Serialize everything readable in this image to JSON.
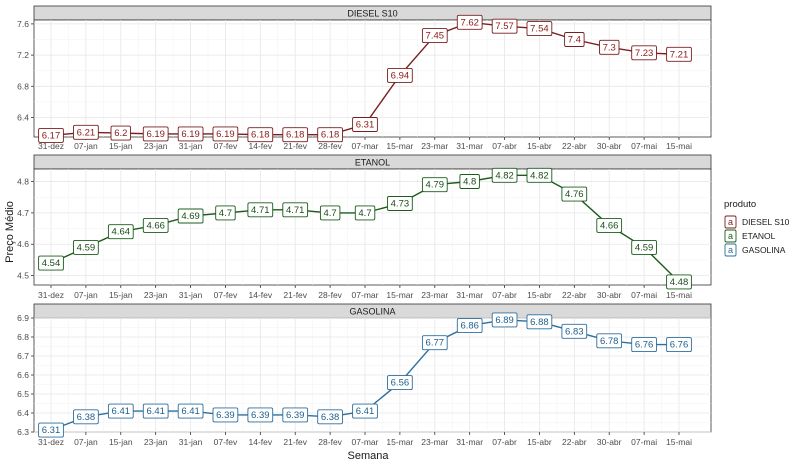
{
  "chart_data": {
    "type": "line",
    "x": [
      "31-dez",
      "07-jan",
      "15-jan",
      "23-jan",
      "31-jan",
      "07-fev",
      "14-fev",
      "21-fev",
      "28-fev",
      "07-mar",
      "15-mar",
      "23-mar",
      "31-mar",
      "07-abr",
      "15-abr",
      "22-abr",
      "30-abr",
      "07-mai",
      "15-mai"
    ],
    "xlabel": "Semana",
    "ylabel": "Preço Médio",
    "legend": {
      "title": "produto",
      "placement": "right"
    },
    "grid": true,
    "panels": [
      {
        "name": "DIESEL S10",
        "color": "#7a1f1f",
        "label_text_color": "#8b1a1a",
        "ylim": [
          6.15,
          7.65
        ],
        "yticks": [
          6.4,
          6.8,
          7.2,
          7.6
        ],
        "ytick_labels": [
          "6.4",
          "6.8",
          "7.2",
          "7.6"
        ],
        "values": [
          6.17,
          6.21,
          6.2,
          6.19,
          6.19,
          6.19,
          6.18,
          6.18,
          6.18,
          6.31,
          6.94,
          7.45,
          7.62,
          7.57,
          7.54,
          7.4,
          7.3,
          7.23,
          7.21
        ],
        "value_labels": [
          "6.17",
          "6.21",
          "6.2",
          "6.19",
          "6.19",
          "6.19",
          "6.18",
          "6.18",
          "6.18",
          "6.31",
          "6.94",
          "7.45",
          "7.62",
          "7.57",
          "7.54",
          "7.4",
          "7.3",
          "7.23",
          "7.21"
        ]
      },
      {
        "name": "ETANOL",
        "color": "#1a5c1a",
        "label_text_color": "#1a4d1a",
        "ylim": [
          4.47,
          4.84
        ],
        "yticks": [
          4.5,
          4.6,
          4.7,
          4.8
        ],
        "ytick_labels": [
          "4.5",
          "4.6",
          "4.7",
          "4.8"
        ],
        "values": [
          4.54,
          4.59,
          4.64,
          4.66,
          4.69,
          4.7,
          4.71,
          4.71,
          4.7,
          4.7,
          4.73,
          4.79,
          4.8,
          4.82,
          4.82,
          4.76,
          4.66,
          4.59,
          4.48
        ],
        "value_labels": [
          "4.54",
          "4.59",
          "4.64",
          "4.66",
          "4.69",
          "4.7",
          "4.71",
          "4.71",
          "4.7",
          "4.7",
          "4.73",
          "4.79",
          "4.8",
          "4.82",
          "4.82",
          "4.76",
          "4.66",
          "4.59",
          "4.48"
        ]
      },
      {
        "name": "GASOLINA",
        "color": "#2e6f9e",
        "label_text_color": "#1f5f8b",
        "ylim": [
          6.3,
          6.9
        ],
        "yticks": [
          6.3,
          6.4,
          6.5,
          6.6,
          6.7,
          6.8,
          6.9
        ],
        "ytick_labels": [
          "6.3",
          "6.4",
          "6.5",
          "6.6",
          "6.7",
          "6.8",
          "6.9"
        ],
        "values": [
          6.31,
          6.38,
          6.41,
          6.41,
          6.41,
          6.39,
          6.39,
          6.39,
          6.38,
          6.41,
          6.56,
          6.77,
          6.86,
          6.89,
          6.88,
          6.83,
          6.78,
          6.76,
          6.76
        ],
        "value_labels": [
          "6.31",
          "6.38",
          "6.41",
          "6.41",
          "6.41",
          "6.39",
          "6.39",
          "6.39",
          "6.38",
          "6.41",
          "6.56",
          "6.77",
          "6.86",
          "6.89",
          "6.88",
          "6.83",
          "6.78",
          "6.76",
          "6.76"
        ]
      }
    ]
  }
}
